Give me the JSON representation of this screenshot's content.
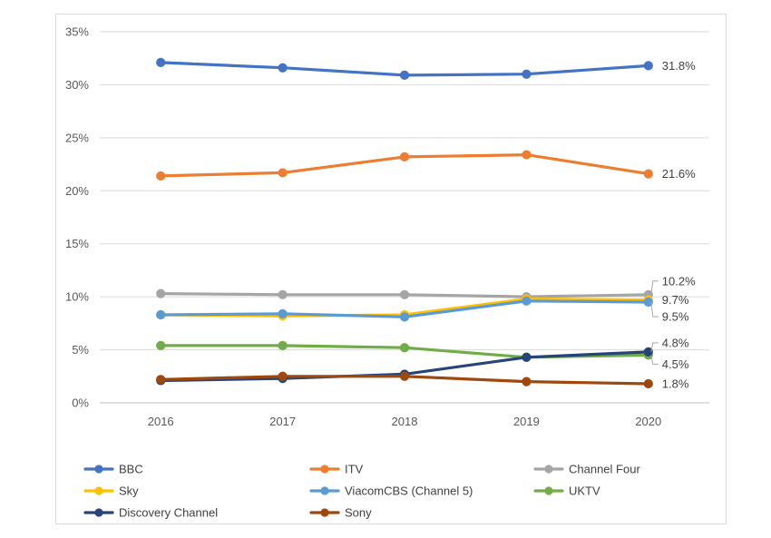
{
  "chart_data": {
    "type": "line",
    "title": "",
    "xlabel": "",
    "ylabel": "",
    "categories": [
      "2016",
      "2017",
      "2018",
      "2019",
      "2020"
    ],
    "ylim": [
      0,
      35
    ],
    "y_ticks": [
      "0%",
      "5%",
      "10%",
      "15%",
      "20%",
      "25%",
      "30%",
      "35%"
    ],
    "grid": true,
    "legend_position": "bottom",
    "series": [
      {
        "name": "BBC",
        "color": "#4472c4",
        "values": [
          32.1,
          31.6,
          30.9,
          31.0,
          31.8
        ],
        "end_label": "31.8%"
      },
      {
        "name": "ITV",
        "color": "#ed7d31",
        "values": [
          21.4,
          21.7,
          23.2,
          23.4,
          21.6
        ],
        "end_label": "21.6%"
      },
      {
        "name": "Channel Four",
        "color": "#a5a5a5",
        "values": [
          10.3,
          10.2,
          10.2,
          10.0,
          10.2
        ],
        "end_label": "10.2%"
      },
      {
        "name": "Sky",
        "color": "#ffc000",
        "values": [
          8.3,
          8.2,
          8.3,
          9.8,
          9.7
        ],
        "end_label": "9.7%"
      },
      {
        "name": "ViacomCBS (Channel 5)",
        "color": "#5b9bd5",
        "values": [
          8.3,
          8.4,
          8.1,
          9.6,
          9.5
        ],
        "end_label": "9.5%"
      },
      {
        "name": "UKTV",
        "color": "#70ad47",
        "values": [
          5.4,
          5.4,
          5.2,
          4.3,
          4.5
        ],
        "end_label": "4.5%"
      },
      {
        "name": "Discovery Channel",
        "color": "#264478",
        "values": [
          2.1,
          2.3,
          2.7,
          4.3,
          4.8
        ],
        "end_label": "4.8%"
      },
      {
        "name": "Sony",
        "color": "#9e480e",
        "values": [
          2.2,
          2.5,
          2.5,
          2.0,
          1.8
        ],
        "end_label": "1.8%"
      }
    ]
  }
}
